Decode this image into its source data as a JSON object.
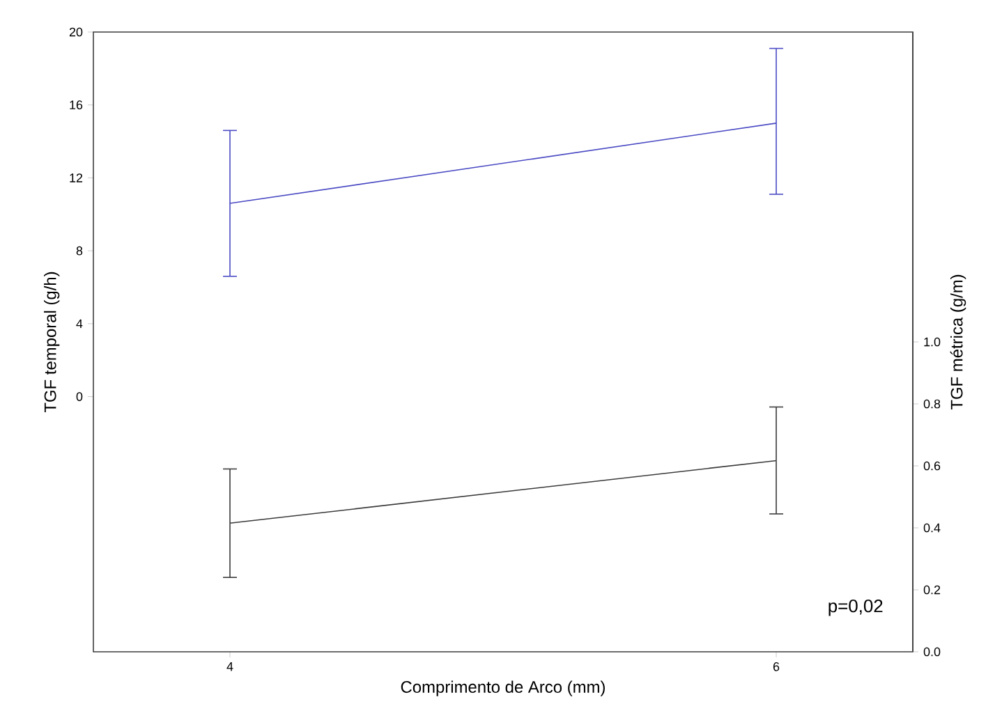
{
  "chart_data": {
    "type": "line",
    "xlabel": "Comprimento de Arco (mm)",
    "ylabel": "TGF temporal (g/h)",
    "y2label": "TGF métrica (g/m)",
    "x": [
      4,
      6
    ],
    "xlim": [
      3.5,
      6.5
    ],
    "xticks": [
      4,
      6
    ],
    "ylim": [
      -14,
      20
    ],
    "yticks": [
      0,
      4,
      8,
      12,
      16,
      20
    ],
    "y2lim": [
      0,
      2.0
    ],
    "y2ticks": [
      {
        "value": 0,
        "label": "0.0"
      },
      {
        "value": 0.2,
        "label": "0.2"
      },
      {
        "value": 0.4,
        "label": "0.4"
      },
      {
        "value": 0.6,
        "label": "0.6"
      },
      {
        "value": 0.8,
        "label": "0.8"
      },
      {
        "value": 1.0,
        "label": "1.0"
      }
    ],
    "series": [
      {
        "color": "#4a4ac4",
        "values": [
          10.6,
          15.0
        ],
        "errors": [
          [
            6.6,
            14.6
          ],
          [
            11.1,
            19.1
          ]
        ]
      },
      {
        "color": "#3a3a3a",
        "axis": "y2",
        "values": [
          0.415,
          0.617
        ],
        "errors": [
          [
            0.24,
            0.59
          ],
          [
            0.445,
            0.79
          ]
        ]
      }
    ],
    "annotations": [
      "p=0,02"
    ],
    "marker": "none",
    "line_style": "solid"
  }
}
